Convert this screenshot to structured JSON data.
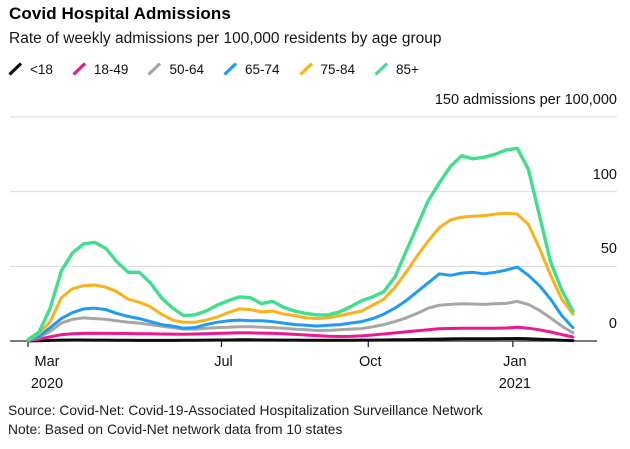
{
  "header": {
    "title": "Covid Hospital Admissions",
    "subtitle": "Rate of weekly admissions per 100,000 residents by age group"
  },
  "footer": {
    "source": "Source: Covid-Net: Covid-19-Associated Hospitalization Surveillance Network",
    "note": "Note: Based on Covid-Net network data from 10 states"
  },
  "chart_data": {
    "type": "line",
    "title": "Covid Hospital Admissions",
    "subtitle": "Rate of weekly admissions per 100,000 residents by age group",
    "legend_position": "top",
    "grid": true,
    "x_axis": {
      "unit": "weeks",
      "sampling": "weekly values, index 0 = early Mar 2020, index 49 = early Feb 2021",
      "ticks": [
        {
          "label": "Mar",
          "sublabel": "2020",
          "week": 0
        },
        {
          "label": "Jul",
          "week": 17.4
        },
        {
          "label": "Oct",
          "week": 30.6
        },
        {
          "label": "Jan",
          "sublabel": "2021",
          "week": 43.6
        }
      ]
    },
    "y_axis": {
      "top_label": "150 admissions per 100,000",
      "range": [
        0,
        150
      ],
      "gridlines": [
        150,
        100,
        50
      ],
      "ticks": [
        {
          "value": 100,
          "label": "100"
        },
        {
          "value": 50,
          "label": "50"
        },
        {
          "value": 0,
          "label": "0"
        }
      ]
    },
    "series": [
      {
        "name": "<18",
        "color": "#0d0d0d",
        "values": [
          0.1,
          0.2,
          0.4,
          0.6,
          0.7,
          0.7,
          0.6,
          0.6,
          0.5,
          0.5,
          0.4,
          0.4,
          0.4,
          0.4,
          0.5,
          0.5,
          0.6,
          0.7,
          0.7,
          0.8,
          0.8,
          0.7,
          0.7,
          0.6,
          0.6,
          0.5,
          0.5,
          0.5,
          0.5,
          0.5,
          0.6,
          0.6,
          0.7,
          0.8,
          0.9,
          1.0,
          1.2,
          1.3,
          1.4,
          1.5,
          1.5,
          1.5,
          1.5,
          1.6,
          1.7,
          1.5,
          1.2,
          0.9,
          0.5,
          0.3
        ]
      },
      {
        "name": "18-49",
        "color": "#ed188f",
        "values": [
          0.2,
          1.2,
          2.8,
          4.2,
          4.8,
          5.1,
          5.2,
          5.1,
          5,
          5,
          4.9,
          4.8,
          4.7,
          4.6,
          4.5,
          4.7,
          4.9,
          5.1,
          5.3,
          5.5,
          5.4,
          5.3,
          5.1,
          4.8,
          4.4,
          4,
          3.6,
          3.2,
          3,
          3.1,
          3.4,
          4,
          4.7,
          5.4,
          6.1,
          6.9,
          7.6,
          8.2,
          8.4,
          8.5,
          8.5,
          8.5,
          8.6,
          8.7,
          9.2,
          8.6,
          7.5,
          6,
          4.3,
          2.7
        ]
      },
      {
        "name": "50-64",
        "color": "#a6a6a6",
        "values": [
          0.3,
          2.5,
          6.5,
          12,
          14.5,
          15.5,
          15,
          14.5,
          13.5,
          12.5,
          12,
          11,
          10,
          9,
          8,
          8,
          8.5,
          9,
          9.2,
          9.5,
          9.5,
          9.3,
          9,
          8.5,
          8,
          7.5,
          7,
          7,
          7.5,
          8,
          8.3,
          9.5,
          11,
          13,
          15.5,
          18.5,
          22,
          24,
          24.5,
          25,
          24.8,
          24.5,
          25,
          25.2,
          26.5,
          24.5,
          20.5,
          15.5,
          10,
          5.5
        ]
      },
      {
        "name": "65-74",
        "color": "#1f9bf3",
        "values": [
          0.3,
          3,
          9,
          15,
          19,
          21.5,
          22,
          21,
          18.5,
          16.5,
          15,
          13,
          11,
          10,
          8.5,
          9,
          11,
          12.5,
          13.5,
          14,
          13.5,
          13.5,
          13,
          12,
          11,
          10.5,
          10,
          10.5,
          11,
          12,
          13,
          15,
          18,
          22,
          27,
          33,
          39,
          45,
          44,
          45.5,
          46,
          45,
          46,
          47.5,
          49.5,
          44,
          37,
          28,
          17,
          9
        ]
      },
      {
        "name": "75-84",
        "color": "#f9b219",
        "values": [
          0.5,
          5,
          13,
          29,
          35,
          37,
          37.5,
          36,
          33,
          28,
          26,
          23,
          18,
          14,
          12.5,
          12.5,
          14,
          16,
          19,
          21.5,
          21,
          19.5,
          20,
          18,
          17,
          15.5,
          15,
          15.5,
          17,
          18.5,
          20,
          24,
          28,
          36,
          46,
          57,
          67,
          76,
          81,
          83,
          83.5,
          84,
          85,
          85.5,
          85,
          78,
          62,
          44,
          28,
          18
        ]
      },
      {
        "name": "85+",
        "color": "#41df8d",
        "values": [
          0.8,
          6,
          22,
          47,
          59,
          65,
          66,
          62,
          53,
          46,
          46,
          39,
          29,
          22,
          17,
          17.5,
          20,
          24,
          27,
          29.5,
          29,
          25,
          26.5,
          22.5,
          20,
          18.5,
          17.5,
          17.5,
          19.5,
          23,
          27,
          29.5,
          33,
          43,
          60,
          77,
          94,
          106,
          117,
          124,
          122,
          123,
          125,
          128,
          129,
          115,
          84,
          53,
          34,
          20
        ]
      }
    ]
  }
}
